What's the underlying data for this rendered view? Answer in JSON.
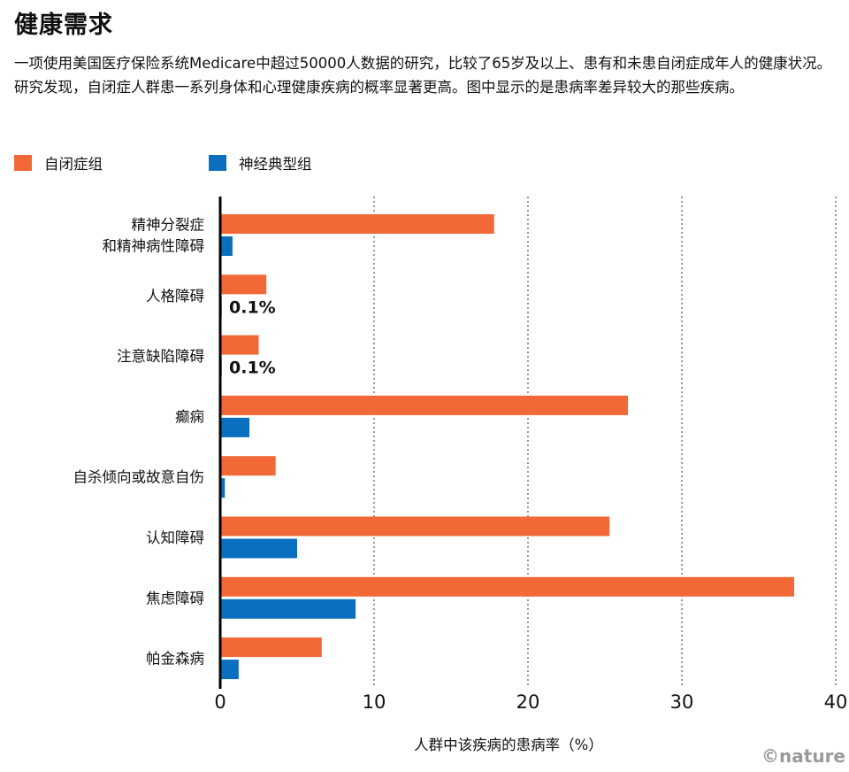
{
  "header": {
    "title": "健康需求",
    "subtitle": "一项使用美国医疗保险系统Medicare中超过50000人数据的研究，比较了65岁及以上、患有和未患自闭症成年人的健康状况。研究发现，自闭症人群患一系列身体和心理健康疾病的概率显著更高。图中显示的是患病率差异较大的那些疾病。"
  },
  "credit": "©nature",
  "colors": {
    "autism": "#f26836",
    "neurotypical": "#0b6fbf",
    "axis": "#000000",
    "grid": "#555555"
  },
  "chart_data": {
    "type": "bar",
    "orientation": "horizontal",
    "title": "健康需求",
    "xlabel": "人群中该疾病的患病率（%）",
    "ylabel": "",
    "xlim": [
      0,
      40
    ],
    "xticks": [
      "0",
      "10",
      "20",
      "30",
      "40"
    ],
    "grid": "vertical dotted",
    "legend_position": "top-left",
    "categories": [
      [
        "精神分裂症",
        "和精神病性障碍"
      ],
      [
        "人格障碍"
      ],
      [
        "注意缺陷障碍"
      ],
      [
        "癫痫"
      ],
      [
        "自杀倾向或故意自伤"
      ],
      [
        "认知障碍"
      ],
      [
        "焦虑障碍"
      ],
      [
        "帕金森病"
      ]
    ],
    "series": [
      {
        "name": "自闭症组",
        "values": [
          17.8,
          3.0,
          2.5,
          26.5,
          3.6,
          25.3,
          37.3,
          6.6
        ]
      },
      {
        "name": "神经典型组",
        "values": [
          0.8,
          0.1,
          0.1,
          1.9,
          0.3,
          5.0,
          8.8,
          1.2
        ]
      }
    ],
    "annotations": [
      {
        "category_index": 1,
        "series_index": 1,
        "text": "0.1%"
      },
      {
        "category_index": 2,
        "series_index": 1,
        "text": "0.1%"
      }
    ]
  }
}
